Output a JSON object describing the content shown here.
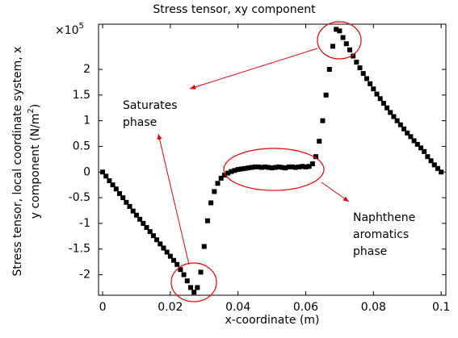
{
  "chart_data": {
    "type": "scatter",
    "title": "Stress tensor, xy component",
    "xlabel": "x-coordinate (m)",
    "ylabel": {
      "line1": "Stress tensor, local coordinate system, x",
      "line2": "y component (N/m",
      "sup": "2",
      "end": ")"
    },
    "multiplier": {
      "base": "×10",
      "exp": "5"
    },
    "xlim": [
      -0.0012,
      0.1014
    ],
    "ylim": [
      -2.4,
      2.88
    ],
    "xticks": [
      0,
      0.02,
      0.04,
      0.06,
      0.08,
      0.1
    ],
    "yticks": [
      -2,
      -1.5,
      -1,
      -0.5,
      0,
      0.5,
      1,
      1.5,
      2
    ],
    "series": [
      {
        "color": "#000000",
        "x": [
          0,
          0.001,
          0.002,
          0.003,
          0.004,
          0.005,
          0.006,
          0.007,
          0.008,
          0.009,
          0.01,
          0.011,
          0.012,
          0.013,
          0.014,
          0.015,
          0.016,
          0.017,
          0.018,
          0.019,
          0.02,
          0.021,
          0.022,
          0.023,
          0.024,
          0.025,
          0.026,
          0.027,
          0.028,
          0.029,
          0.03,
          0.031,
          0.032,
          0.033,
          0.034,
          0.035,
          0.036,
          0.037,
          0.038,
          0.039,
          0.04,
          0.041,
          0.042,
          0.043,
          0.044,
          0.045,
          0.046,
          0.047,
          0.048,
          0.049,
          0.05,
          0.051,
          0.052,
          0.053,
          0.054,
          0.055,
          0.056,
          0.057,
          0.058,
          0.059,
          0.06,
          0.061,
          0.062,
          0.063,
          0.064,
          0.065,
          0.066,
          0.067,
          0.068,
          0.069,
          0.07,
          0.071,
          0.072,
          0.073,
          0.074,
          0.075,
          0.076,
          0.077,
          0.078,
          0.079,
          0.08,
          0.081,
          0.082,
          0.083,
          0.084,
          0.085,
          0.086,
          0.087,
          0.088,
          0.089,
          0.09,
          0.091,
          0.092,
          0.093,
          0.094,
          0.095,
          0.096,
          0.097,
          0.098,
          0.099,
          0.1
        ],
        "values": [
          0,
          -0.08,
          -0.17,
          -0.25,
          -0.33,
          -0.42,
          -0.5,
          -0.59,
          -0.67,
          -0.76,
          -0.84,
          -0.92,
          -1.0,
          -1.08,
          -1.16,
          -1.24,
          -1.32,
          -1.4,
          -1.48,
          -1.56,
          -1.64,
          -1.72,
          -1.8,
          -1.9,
          -2.0,
          -2.12,
          -2.25,
          -2.34,
          -2.25,
          -1.95,
          -1.45,
          -0.95,
          -0.6,
          -0.38,
          -0.22,
          -0.12,
          -0.06,
          -0.02,
          0.01,
          0.03,
          0.05,
          0.06,
          0.07,
          0.08,
          0.09,
          0.1,
          0.1,
          0.09,
          0.1,
          0.09,
          0.08,
          0.09,
          0.1,
          0.09,
          0.08,
          0.1,
          0.1,
          0.09,
          0.1,
          0.11,
          0.1,
          0.11,
          0.16,
          0.3,
          0.6,
          1.0,
          1.5,
          2.0,
          2.45,
          2.78,
          2.75,
          2.62,
          2.5,
          2.38,
          2.26,
          2.14,
          2.03,
          1.92,
          1.82,
          1.72,
          1.62,
          1.52,
          1.43,
          1.34,
          1.25,
          1.16,
          1.08,
          1.0,
          0.92,
          0.84,
          0.76,
          0.69,
          0.61,
          0.54,
          0.47,
          0.4,
          0.3,
          0.22,
          0.14,
          0.07,
          0
        ]
      }
    ],
    "annotations": [
      {
        "lines": [
          "Saturates",
          "phase"
        ]
      },
      {
        "lines": [
          "Naphthene",
          "aromatics",
          "phase"
        ]
      }
    ]
  }
}
